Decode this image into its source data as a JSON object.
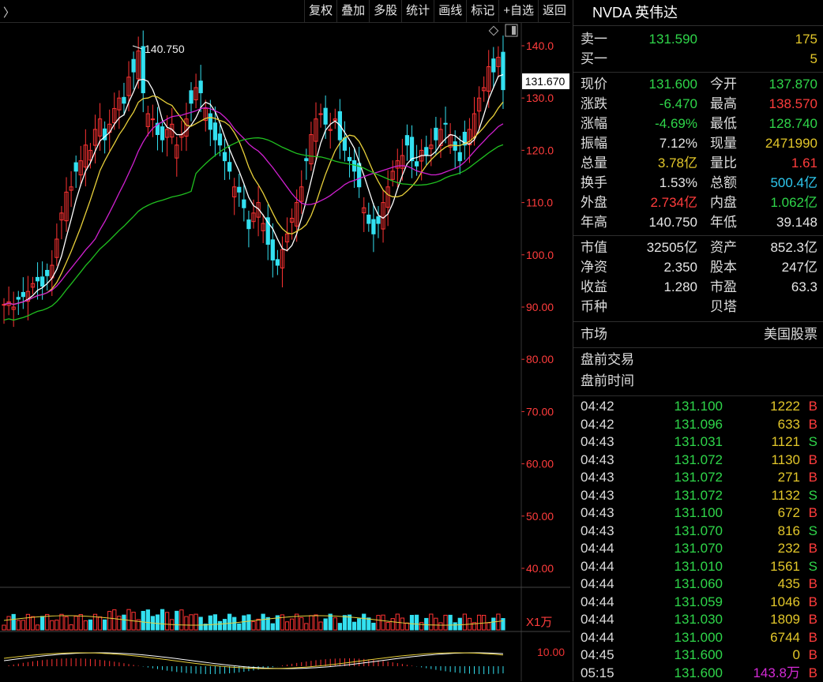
{
  "toolbar": {
    "back_arrow": "〉",
    "buttons": [
      "复权",
      "叠加",
      "多股",
      "统计",
      "画线",
      "标记",
      "+自选",
      "返回"
    ]
  },
  "chart": {
    "price_ticks": [
      "140.0",
      "130.0",
      "120.0",
      "110.0",
      "100.0",
      "90.00",
      "80.00",
      "70.00",
      "60.00",
      "50.00",
      "40.00"
    ],
    "current_price_tag": "131.670",
    "high_annotation": "140.750",
    "volume_unit": "X1万",
    "macd_tick": "10.00",
    "colors": {
      "up": "#ff3333",
      "down": "#33e0f0",
      "ma5": "#ffffff",
      "ma10": "#e8d03a",
      "ma20": "#d020d0",
      "ma60": "#20c020",
      "price_tag_bg": "#ffffff"
    }
  },
  "chart_data": {
    "type": "candlestick",
    "title": "",
    "y_range": [
      35,
      145
    ],
    "ohlc_close_series": [
      90.5,
      91,
      90,
      91.5,
      92,
      93,
      94.5,
      95,
      94,
      96,
      98,
      103,
      108,
      112,
      113,
      116,
      118,
      121,
      120,
      124,
      126,
      122,
      125,
      128,
      130,
      129,
      134,
      135,
      139,
      131,
      127,
      126,
      123,
      122,
      124,
      125,
      121,
      123,
      126,
      129,
      132,
      131,
      128,
      124,
      122,
      121,
      118,
      116,
      113,
      112,
      109,
      105,
      108,
      110,
      106,
      102,
      99,
      98,
      101,
      104,
      107,
      110,
      113,
      118,
      123,
      126,
      127,
      125,
      124,
      126,
      122,
      120,
      118,
      116,
      113,
      109,
      106,
      104,
      106,
      110,
      113,
      116,
      118,
      119,
      121,
      118,
      117,
      120,
      119,
      121,
      122,
      124,
      125,
      123,
      120,
      118,
      121,
      124,
      127,
      130,
      132,
      136,
      135,
      137.8,
      131.6
    ],
    "high": 140.75,
    "last": 131.67
  },
  "quote": {
    "title": "NVDA 英伟达",
    "sell1_label": "卖一",
    "sell1_price": "131.590",
    "sell1_vol": "175",
    "buy1_label": "买一",
    "buy1_vol": "5",
    "rows": [
      {
        "l1": "现价",
        "v1": "131.600",
        "c1": "g",
        "l2": "今开",
        "v2": "137.870",
        "c2": "g"
      },
      {
        "l1": "涨跌",
        "v1": "-6.470",
        "c1": "g",
        "l2": "最高",
        "v2": "138.570",
        "c2": "r"
      },
      {
        "l1": "涨幅",
        "v1": "-4.69%",
        "c1": "g",
        "l2": "最低",
        "v2": "128.740",
        "c2": "g"
      },
      {
        "l1": "振幅",
        "v1": "7.12%",
        "c1": "w",
        "l2": "现量",
        "v2": "2471990",
        "c2": "y"
      },
      {
        "l1": "总量",
        "v1": "3.78亿",
        "c1": "y",
        "l2": "量比",
        "v2": "1.61",
        "c2": "r"
      },
      {
        "l1": "换手",
        "v1": "1.53%",
        "c1": "w",
        "l2": "总额",
        "v2": "500.4亿",
        "c2": "c"
      },
      {
        "l1": "外盘",
        "v1": "2.734亿",
        "c1": "r",
        "l2": "内盘",
        "v2": "1.062亿",
        "c2": "g"
      },
      {
        "l1": "年高",
        "v1": "140.750",
        "c1": "w",
        "l2": "年低",
        "v2": "39.148",
        "c2": "w"
      }
    ],
    "fund_rows": [
      {
        "l1": "市值",
        "v1": "32505亿",
        "l2": "资产",
        "v2": "852.3亿"
      },
      {
        "l1": "净资",
        "v1": "2.350",
        "l2": "股本",
        "v2": "247亿"
      },
      {
        "l1": "收益",
        "v1": "1.280",
        "l2": "市盈",
        "v2": "63.3"
      },
      {
        "l1": "币种",
        "v1": "",
        "l2": "贝塔",
        "v2": ""
      }
    ],
    "market_label": "市场",
    "market_value": "美国股票",
    "premarket_trade": "盘前交易",
    "premarket_time": "盘前时间"
  },
  "ticks": [
    {
      "t": "04:42",
      "p": "131.100",
      "v": "1222",
      "bs": "B"
    },
    {
      "t": "04:42",
      "p": "131.096",
      "v": "633",
      "bs": "B"
    },
    {
      "t": "04:43",
      "p": "131.031",
      "v": "1121",
      "bs": "S"
    },
    {
      "t": "04:43",
      "p": "131.072",
      "v": "1130",
      "bs": "B"
    },
    {
      "t": "04:43",
      "p": "131.072",
      "v": "271",
      "bs": "B"
    },
    {
      "t": "04:43",
      "p": "131.072",
      "v": "1132",
      "bs": "S"
    },
    {
      "t": "04:43",
      "p": "131.100",
      "v": "672",
      "bs": "B"
    },
    {
      "t": "04:43",
      "p": "131.070",
      "v": "816",
      "bs": "S"
    },
    {
      "t": "04:44",
      "p": "131.070",
      "v": "232",
      "bs": "B"
    },
    {
      "t": "04:44",
      "p": "131.010",
      "v": "1561",
      "bs": "S"
    },
    {
      "t": "04:44",
      "p": "131.060",
      "v": "435",
      "bs": "B"
    },
    {
      "t": "04:44",
      "p": "131.059",
      "v": "1046",
      "bs": "B"
    },
    {
      "t": "04:44",
      "p": "131.030",
      "v": "1809",
      "bs": "B"
    },
    {
      "t": "04:44",
      "p": "131.000",
      "v": "6744",
      "bs": "B"
    },
    {
      "t": "04:45",
      "p": "131.600",
      "v": "0",
      "bs": "B"
    },
    {
      "t": "05:15",
      "p": "131.600",
      "v": "143.8万",
      "bs": "B",
      "vc": "m"
    }
  ]
}
